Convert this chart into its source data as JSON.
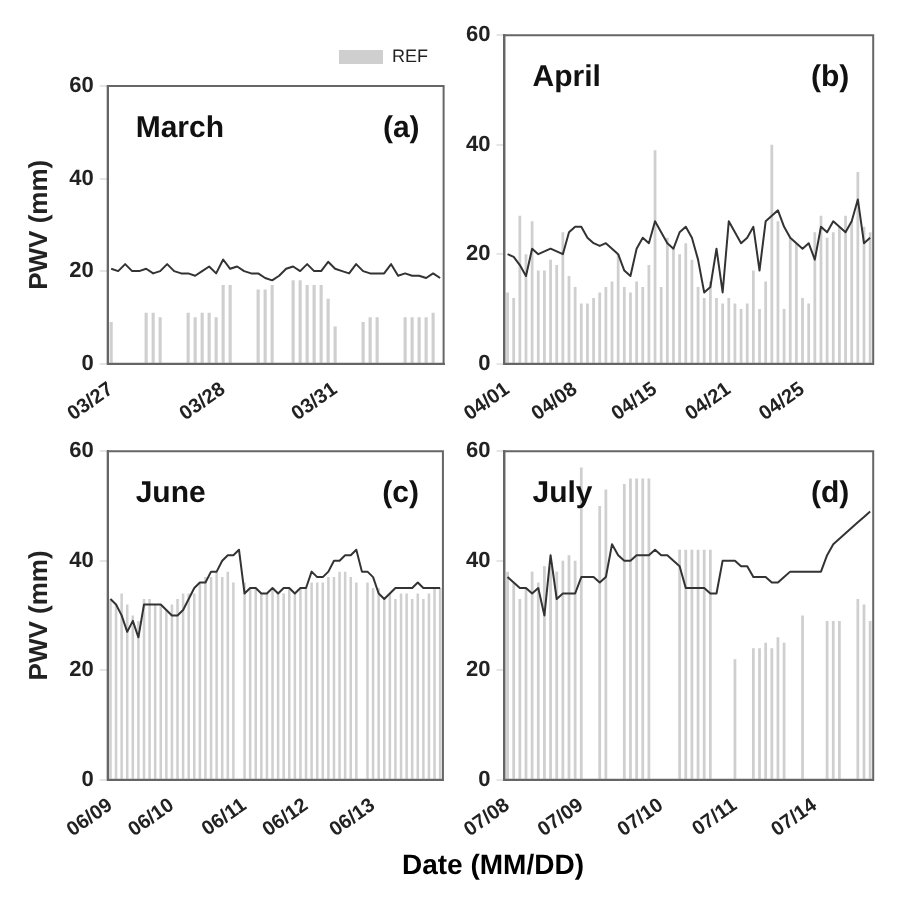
{
  "chart_data": [
    {
      "type": "line",
      "title": "March",
      "annotations": [
        "(a)"
      ],
      "ylabel": "PWV (mm)",
      "legend": "top right",
      "marker": "none",
      "grid": false,
      "ylim": [
        0,
        60
      ],
      "yticks": [
        0,
        20,
        40,
        60
      ],
      "categories": [
        "03/27",
        null,
        null,
        null,
        null,
        null,
        null,
        null,
        null,
        null,
        null,
        null,
        null,
        null,
        null,
        null,
        "03/28",
        null,
        null,
        null,
        null,
        null,
        null,
        null,
        null,
        null,
        null,
        null,
        null,
        null,
        null,
        null,
        "03/31",
        null,
        null,
        null,
        null,
        null,
        null,
        null,
        null,
        null,
        null,
        null,
        null,
        null,
        null,
        null
      ],
      "series": [
        {
          "type": "bar",
          "name": "REF",
          "color": "#cfcfcf",
          "values": [
            9,
            null,
            null,
            null,
            null,
            11,
            11,
            10,
            null,
            null,
            null,
            11,
            10,
            11,
            11,
            10,
            17,
            17,
            null,
            null,
            null,
            16,
            16,
            17,
            null,
            null,
            18,
            18,
            17,
            17,
            17,
            14,
            8,
            null,
            null,
            null,
            9,
            10,
            10,
            null,
            null,
            null,
            10,
            10,
            10,
            10,
            11,
            null
          ]
        },
        {
          "color": "#333333",
          "values": [
            20.5,
            20,
            21.5,
            20,
            20,
            20.5,
            19.5,
            20,
            21.5,
            20,
            19.5,
            19.5,
            19,
            20,
            21,
            19.5,
            22.5,
            20.5,
            21,
            20,
            19.5,
            19.5,
            18.5,
            18,
            19,
            20.5,
            21,
            20,
            21.5,
            20,
            20,
            22,
            20.5,
            20,
            19.5,
            21.5,
            20,
            19.5,
            19.5,
            19.5,
            21.5,
            19,
            19.5,
            19,
            19,
            18.5,
            19.5,
            18.5
          ]
        }
      ]
    },
    {
      "type": "line",
      "title": "April",
      "annotations": [
        "(b)"
      ],
      "legend": false,
      "marker": "none",
      "grid": false,
      "ylim": [
        0,
        60
      ],
      "yticks": [
        0,
        20,
        40,
        60
      ],
      "categories": [
        "04/01",
        null,
        null,
        null,
        null,
        null,
        null,
        null,
        null,
        null,
        null,
        "04/08",
        null,
        null,
        null,
        null,
        null,
        null,
        null,
        null,
        null,
        null,
        null,
        null,
        "04/15",
        null,
        null,
        null,
        null,
        null,
        null,
        null,
        null,
        null,
        null,
        null,
        "04/21",
        null,
        null,
        null,
        null,
        null,
        null,
        null,
        null,
        null,
        null,
        null,
        "04/25",
        null,
        null,
        null,
        null,
        null,
        null,
        null,
        null,
        null,
        null,
        null
      ],
      "series": [
        {
          "type": "bar",
          "color": "#cfcfcf",
          "values": [
            13,
            12,
            27,
            20,
            26,
            17,
            17,
            19,
            18,
            24,
            16,
            14,
            11,
            11,
            12,
            13,
            14,
            15,
            20,
            14,
            13,
            15,
            14,
            18,
            39,
            14,
            23,
            21,
            20,
            22,
            19,
            14,
            12,
            15,
            12,
            11,
            12,
            11,
            10,
            11,
            17,
            10,
            15,
            40,
            26,
            10,
            23,
            22,
            12,
            11,
            24,
            27,
            23,
            24,
            25,
            27,
            26,
            35,
            25,
            24
          ]
        },
        {
          "color": "#333333",
          "values": [
            20,
            19.5,
            18,
            16,
            21,
            20,
            20.5,
            21,
            20.5,
            20,
            24,
            25,
            25,
            23,
            22,
            21.5,
            22,
            21,
            20,
            17,
            16,
            21,
            23,
            22,
            26,
            24,
            22,
            21,
            24,
            25,
            23,
            19,
            13,
            14,
            21,
            13,
            26,
            24,
            22,
            23,
            25,
            17,
            26,
            27,
            28,
            25,
            23,
            22,
            21,
            22,
            19,
            25,
            24,
            26,
            25,
            24,
            26,
            30,
            22,
            23
          ]
        }
      ]
    },
    {
      "type": "line",
      "title": "June",
      "annotations": [
        "(c)"
      ],
      "ylabel": "PWV (mm)",
      "xlabel": "Date (MM/DD)",
      "legend": false,
      "marker": "none",
      "grid": false,
      "ylim": [
        0,
        60
      ],
      "yticks": [
        0,
        20,
        40,
        60
      ],
      "categories": [
        "06/09",
        null,
        null,
        null,
        null,
        null,
        null,
        null,
        null,
        null,
        null,
        "06/10",
        null,
        null,
        null,
        null,
        null,
        null,
        null,
        null,
        null,
        null,
        null,
        null,
        "06/11",
        null,
        null,
        null,
        null,
        null,
        null,
        null,
        null,
        null,
        null,
        "06/12",
        null,
        null,
        null,
        null,
        null,
        null,
        null,
        null,
        null,
        null,
        null,
        "06/13",
        null,
        null,
        null,
        null,
        null,
        null,
        null,
        null,
        null,
        null,
        null,
        null
      ],
      "series": [
        {
          "type": "bar",
          "color": "#cfcfcf",
          "values": [
            33,
            32,
            34,
            32,
            30,
            29,
            33,
            33,
            32,
            32,
            31,
            32,
            33,
            34,
            34,
            34,
            36,
            37,
            37,
            38,
            37,
            38,
            36,
            null,
            36,
            35,
            35,
            34,
            34,
            35,
            34,
            34,
            35,
            34,
            35,
            35,
            36,
            36,
            36,
            37,
            37,
            38,
            38,
            37,
            36,
            null,
            36,
            35,
            35,
            33,
            34,
            33,
            34,
            34,
            33,
            34,
            33,
            34,
            35,
            35
          ]
        },
        {
          "color": "#333333",
          "values": [
            33,
            32,
            30,
            27,
            29,
            26,
            32,
            32,
            32,
            32,
            31,
            30,
            30,
            31,
            33,
            35,
            36,
            36,
            38,
            38,
            40,
            41,
            41,
            42,
            34,
            35,
            35,
            34,
            34,
            35,
            34,
            35,
            35,
            34,
            35,
            35,
            38,
            37,
            37,
            38,
            40,
            40,
            41,
            41,
            42,
            38,
            38,
            37,
            34,
            33,
            34,
            35,
            35,
            35,
            35,
            36,
            35,
            35,
            35,
            35
          ]
        }
      ]
    },
    {
      "type": "line",
      "title": "July",
      "annotations": [
        "(d)"
      ],
      "legend": false,
      "marker": "none",
      "grid": false,
      "ylim": [
        0,
        60
      ],
      "yticks": [
        0,
        20,
        40,
        60
      ],
      "categories": [
        "07/08",
        null,
        null,
        null,
        null,
        null,
        null,
        null,
        null,
        null,
        null,
        null,
        "07/09",
        null,
        null,
        null,
        null,
        null,
        null,
        null,
        null,
        null,
        null,
        null,
        null,
        "07/10",
        null,
        null,
        null,
        null,
        null,
        null,
        null,
        null,
        null,
        null,
        null,
        "07/11",
        null,
        null,
        null,
        null,
        null,
        null,
        null,
        null,
        null,
        null,
        null,
        null,
        "07/14",
        null,
        null,
        null,
        null,
        null,
        null,
        null,
        null,
        null
      ],
      "series": [
        {
          "type": "bar",
          "color": "#cfcfcf",
          "values": [
            38,
            36,
            33,
            35,
            38,
            36,
            39,
            39,
            38,
            40,
            41,
            40,
            57,
            null,
            null,
            50,
            53,
            null,
            null,
            54,
            55,
            55,
            55,
            55,
            null,
            null,
            null,
            null,
            42,
            42,
            42,
            42,
            42,
            42,
            null,
            null,
            null,
            22,
            null,
            null,
            24,
            24,
            25,
            24,
            26,
            25,
            null,
            null,
            30,
            null,
            null,
            null,
            29,
            29,
            29,
            null,
            null,
            33,
            32,
            29
          ]
        },
        {
          "color": "#333333",
          "values": [
            37,
            36,
            35,
            35,
            34,
            35,
            30,
            41,
            33,
            34,
            34,
            34,
            37,
            37,
            37,
            36,
            37,
            43,
            41,
            40,
            40,
            41,
            41,
            41,
            42,
            41,
            41,
            40,
            39,
            35,
            35,
            35,
            35,
            34,
            34,
            40,
            40,
            40,
            39,
            39,
            37,
            37,
            37,
            36,
            36,
            37,
            38,
            38,
            38,
            38,
            38,
            38,
            41,
            43,
            44,
            45,
            46,
            47,
            48,
            49
          ]
        }
      ]
    }
  ]
}
